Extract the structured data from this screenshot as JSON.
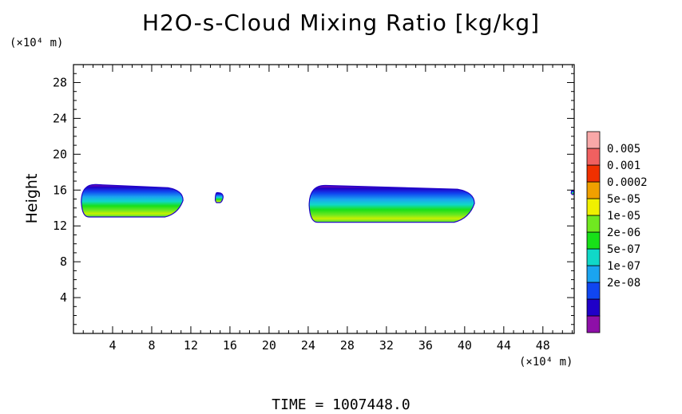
{
  "chart_data": {
    "type": "heatmap",
    "title": "H2O-s-Cloud Mixing Ratio [kg/kg]",
    "ylabel": "Height",
    "x_unit": "(×10⁴ m)",
    "y_unit": "(×10⁴ m)",
    "footer": "TIME = 1007448.0",
    "xlim": [
      0,
      51.2
    ],
    "ylim": [
      0,
      30
    ],
    "x_ticks": [
      4,
      8,
      12,
      16,
      20,
      24,
      28,
      32,
      36,
      40,
      44,
      48
    ],
    "y_ticks": [
      4,
      8,
      12,
      16,
      20,
      24,
      28
    ],
    "colorbar": {
      "labels": [
        "0.005",
        "0.001",
        "0.0002",
        "5e-05",
        "1e-05",
        "2e-06",
        "5e-07",
        "1e-07",
        "2e-08"
      ],
      "colors": [
        "#8e0fa8",
        "#1f00c8",
        "#1046f0",
        "#1aa4f0",
        "#10d8c8",
        "#18e018",
        "#70e820",
        "#f0f000",
        "#f0a000",
        "#f03000",
        "#f06060",
        "#f8a8a8"
      ]
    },
    "cloud_regions": [
      {
        "name": "cloud-a",
        "x_start": 0.8,
        "x_end": 11.2,
        "y_base": 13.0,
        "y_top": 16.7
      },
      {
        "name": "cloud-b",
        "x_start": 14.5,
        "x_end": 15.3,
        "y_base": 14.6,
        "y_top": 15.8
      },
      {
        "name": "cloud-c",
        "x_start": 24.1,
        "x_end": 41.0,
        "y_base": 12.4,
        "y_top": 16.6
      },
      {
        "name": "cloud-d",
        "x_start": 50.9,
        "x_end": 51.2,
        "y_base": 15.5,
        "y_top": 16.0
      }
    ]
  }
}
